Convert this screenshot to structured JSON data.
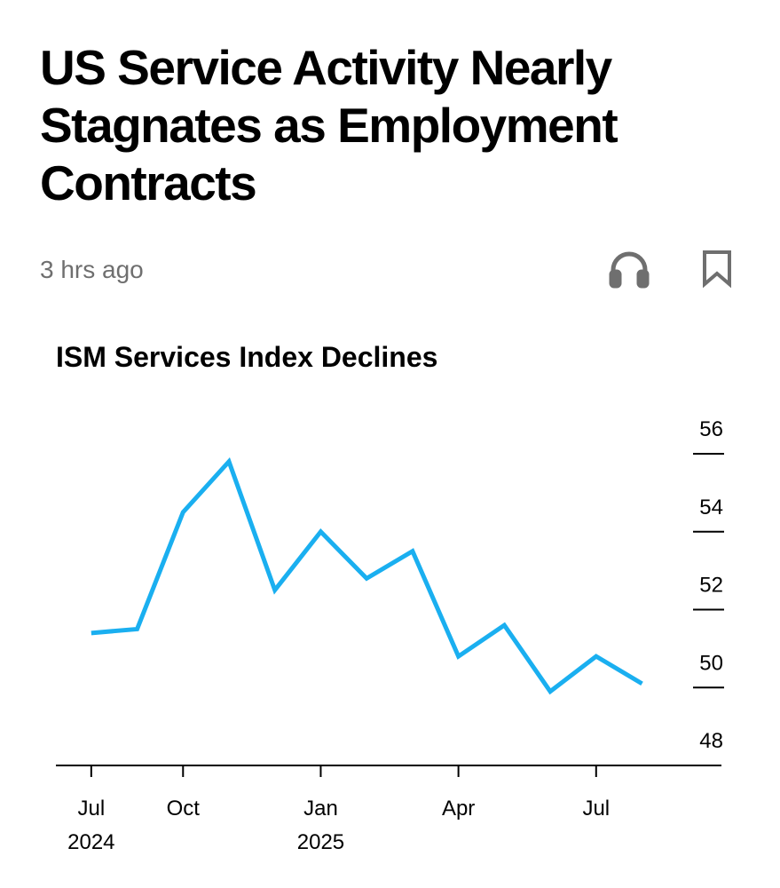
{
  "header": {
    "title": "US Service Activity Nearly Stagnates as Employment Contracts",
    "time": "3 hrs ago"
  },
  "chart_data": {
    "type": "line",
    "title": "ISM Services Index Declines",
    "x": [
      0,
      1,
      2,
      3,
      4,
      5,
      6,
      7,
      8,
      9,
      10,
      11,
      12
    ],
    "series": [
      {
        "name": "ISM Services Index",
        "color": "#1aaff0",
        "values": [
          51.4,
          51.5,
          54.5,
          55.8,
          52.5,
          54.0,
          52.8,
          53.5,
          50.8,
          51.6,
          49.9,
          50.8,
          50.1
        ]
      }
    ],
    "xlim": [
      -0.77,
      13.73
    ],
    "xticks": [
      {
        "value": 0,
        "label": "Jul",
        "year": "2024"
      },
      {
        "value": 2,
        "label": "Oct"
      },
      {
        "value": 5,
        "label": "Jan",
        "year": "2025"
      },
      {
        "value": 8,
        "label": "Apr"
      },
      {
        "value": 11,
        "label": "Jul"
      }
    ],
    "ylim": [
      48,
      56
    ],
    "yticks": [
      48,
      50,
      52,
      54,
      56
    ],
    "axis_side": "right"
  }
}
